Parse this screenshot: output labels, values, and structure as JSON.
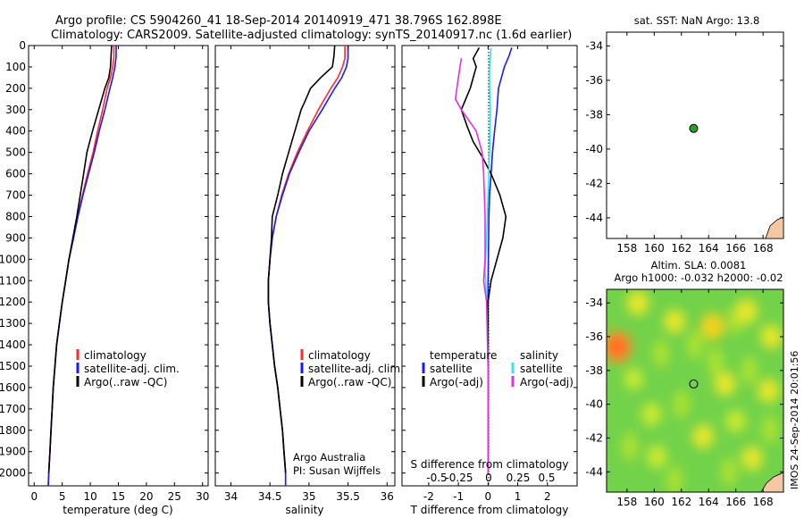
{
  "header": {
    "line1": "Argo profile: CS 5904260_41 18-Sep-2014 20140919_471 38.796S 162.898E",
    "line2": "Climatology: CARS2009. Satellite-adjusted climatology: synTS_20140917.nc (1.6d earlier)"
  },
  "colors": {
    "climatology": "#ff2a2a",
    "satellite": "#1a1aff",
    "argo": "#000000",
    "satellite_salinity": "#33e6e6",
    "argo_salinity": "#e52ee5",
    "land": "#f5c7a3",
    "marker": "#2ca02c"
  },
  "depth_ticks": [
    "0",
    "100",
    "200",
    "300",
    "400",
    "500",
    "600",
    "700",
    "800",
    "900",
    "1000",
    "1100",
    "1200",
    "1300",
    "1400",
    "1500",
    "1600",
    "1700",
    "1800",
    "1900",
    "2000"
  ],
  "chart_data": [
    {
      "type": "line",
      "panel": "temperature",
      "xlabel": "temperature (deg C)",
      "xlim": [
        -1,
        31
      ],
      "ylim": [
        2060,
        0
      ],
      "xticks": [
        "0",
        "5",
        "10",
        "15",
        "20",
        "25",
        "30"
      ],
      "legend": [
        "climatology",
        "satellite-adj. clim.",
        "Argo(..raw -QC)"
      ],
      "series": [
        {
          "name": "climatology",
          "color": "#ff2a2a",
          "points": [
            [
              14.2,
              0
            ],
            [
              14.2,
              50
            ],
            [
              14.0,
              100
            ],
            [
              13.6,
              150
            ],
            [
              13.0,
              200
            ],
            [
              12.2,
              300
            ],
            [
              11.3,
              400
            ],
            [
              10.5,
              500
            ],
            [
              9.5,
              600
            ],
            [
              8.6,
              700
            ],
            [
              7.7,
              800
            ],
            [
              7.0,
              900
            ],
            [
              6.2,
              1000
            ],
            [
              5.6,
              1100
            ],
            [
              5.0,
              1200
            ],
            [
              4.5,
              1300
            ],
            [
              4.0,
              1400
            ],
            [
              3.7,
              1500
            ],
            [
              3.4,
              1600
            ],
            [
              3.2,
              1700
            ],
            [
              3.0,
              1800
            ],
            [
              2.8,
              1900
            ],
            [
              2.6,
              2000
            ],
            [
              2.5,
              2060
            ]
          ]
        },
        {
          "name": "satellite-adj. clim.",
          "color": "#1a1aff",
          "points": [
            [
              14.6,
              0
            ],
            [
              14.6,
              50
            ],
            [
              14.4,
              100
            ],
            [
              14.0,
              150
            ],
            [
              13.5,
              200
            ],
            [
              12.6,
              300
            ],
            [
              11.6,
              400
            ],
            [
              10.7,
              500
            ],
            [
              9.7,
              600
            ],
            [
              8.7,
              700
            ],
            [
              7.8,
              800
            ],
            [
              7.0,
              900
            ],
            [
              6.2,
              1000
            ],
            [
              5.6,
              1100
            ],
            [
              5.0,
              1200
            ],
            [
              4.5,
              1300
            ],
            [
              4.0,
              1400
            ],
            [
              3.7,
              1500
            ],
            [
              3.4,
              1600
            ],
            [
              3.2,
              1700
            ],
            [
              3.0,
              1800
            ],
            [
              2.8,
              1900
            ],
            [
              2.6,
              2000
            ],
            [
              2.5,
              2060
            ]
          ]
        },
        {
          "name": "Argo(..raw -QC)",
          "color": "#000000",
          "points": [
            [
              13.8,
              0
            ],
            [
              13.7,
              50
            ],
            [
              13.6,
              100
            ],
            [
              13.3,
              150
            ],
            [
              12.6,
              200
            ],
            [
              11.5,
              300
            ],
            [
              10.4,
              400
            ],
            [
              9.8,
              460
            ],
            [
              9.4,
              500
            ],
            [
              8.8,
              600
            ],
            [
              8.2,
              700
            ],
            [
              7.6,
              800
            ],
            [
              6.9,
              900
            ],
            [
              6.2,
              1000
            ],
            [
              5.6,
              1100
            ],
            [
              5.0,
              1200
            ],
            [
              4.5,
              1300
            ],
            [
              4.0,
              1400
            ],
            [
              3.7,
              1500
            ],
            [
              3.4,
              1600
            ],
            [
              3.2,
              1700
            ],
            [
              3.0,
              1800
            ],
            [
              2.8,
              1900
            ],
            [
              2.6,
              2000
            ]
          ]
        }
      ]
    },
    {
      "type": "line",
      "panel": "salinity",
      "xlabel": "salinity",
      "xlim": [
        33.8,
        36.1
      ],
      "ylim": [
        2060,
        0
      ],
      "xticks": [
        "34",
        "34.5",
        "35",
        "35.5",
        "36"
      ],
      "legend": [
        "climatology",
        "satellite-adj. clim.",
        "Argo(..raw -QC)"
      ],
      "note": [
        "Argo Australia",
        "PI: Susan Wijffels"
      ],
      "series": [
        {
          "name": "climatology",
          "color": "#ff2a2a",
          "points": [
            [
              35.46,
              0
            ],
            [
              35.46,
              60
            ],
            [
              35.43,
              100
            ],
            [
              35.37,
              150
            ],
            [
              35.28,
              200
            ],
            [
              35.12,
              300
            ],
            [
              34.98,
              400
            ],
            [
              34.85,
              500
            ],
            [
              34.74,
              600
            ],
            [
              34.65,
              700
            ],
            [
              34.58,
              800
            ],
            [
              34.53,
              900
            ],
            [
              34.5,
              1000
            ],
            [
              34.48,
              1100
            ],
            [
              34.48,
              1200
            ],
            [
              34.5,
              1300
            ],
            [
              34.53,
              1400
            ],
            [
              34.56,
              1500
            ],
            [
              34.6,
              1600
            ],
            [
              34.63,
              1700
            ],
            [
              34.66,
              1800
            ],
            [
              34.68,
              1900
            ],
            [
              34.7,
              2000
            ],
            [
              34.7,
              2060
            ]
          ]
        },
        {
          "name": "satellite-adj. clim.",
          "color": "#1a1aff",
          "points": [
            [
              35.5,
              0
            ],
            [
              35.5,
              60
            ],
            [
              35.48,
              100
            ],
            [
              35.42,
              150
            ],
            [
              35.33,
              200
            ],
            [
              35.17,
              300
            ],
            [
              35.0,
              400
            ],
            [
              34.87,
              500
            ],
            [
              34.75,
              600
            ],
            [
              34.66,
              700
            ],
            [
              34.58,
              800
            ],
            [
              34.53,
              900
            ],
            [
              34.5,
              1000
            ],
            [
              34.48,
              1100
            ],
            [
              34.48,
              1200
            ],
            [
              34.5,
              1300
            ],
            [
              34.53,
              1400
            ],
            [
              34.56,
              1500
            ],
            [
              34.6,
              1600
            ],
            [
              34.63,
              1700
            ],
            [
              34.66,
              1800
            ],
            [
              34.68,
              1900
            ],
            [
              34.7,
              2000
            ],
            [
              34.7,
              2060
            ]
          ]
        },
        {
          "name": "Argo(..raw -QC)",
          "color": "#000000",
          "points": [
            [
              35.33,
              0
            ],
            [
              35.32,
              50
            ],
            [
              35.3,
              100
            ],
            [
              35.15,
              150
            ],
            [
              35.02,
              200
            ],
            [
              34.95,
              260
            ],
            [
              34.9,
              300
            ],
            [
              34.82,
              400
            ],
            [
              34.74,
              500
            ],
            [
              34.66,
              600
            ],
            [
              34.6,
              700
            ],
            [
              34.53,
              800
            ],
            [
              34.52,
              900
            ],
            [
              34.5,
              1000
            ],
            [
              34.48,
              1100
            ],
            [
              34.48,
              1200
            ],
            [
              34.5,
              1300
            ],
            [
              34.53,
              1400
            ],
            [
              34.56,
              1500
            ],
            [
              34.6,
              1600
            ],
            [
              34.63,
              1700
            ],
            [
              34.66,
              1800
            ],
            [
              34.68,
              1900
            ],
            [
              34.7,
              2000
            ]
          ]
        }
      ]
    },
    {
      "type": "line",
      "panel": "difference",
      "xlabel": "T difference from climatology",
      "xlabel_top": "S difference from climatology",
      "xlim": [
        -2.9,
        3.0
      ],
      "ylim": [
        2060,
        0
      ],
      "xticks": [
        "-2",
        "-1",
        "0",
        "1",
        "2"
      ],
      "top_ticks": [
        "-0.5",
        "-0.25",
        "0",
        "0.25",
        "0.5"
      ],
      "legend_temperature": [
        "temperature",
        "satellite",
        "Argo(-adj)"
      ],
      "legend_salinity": [
        "salinity",
        "satellite",
        "Argo(-adj)"
      ],
      "series": [
        {
          "name": "temperature satellite",
          "color": "#1a1aff",
          "points": [
            [
              0.8,
              10
            ],
            [
              0.7,
              50
            ],
            [
              0.55,
              100
            ],
            [
              0.45,
              150
            ],
            [
              0.35,
              200
            ],
            [
              0.3,
              300
            ],
            [
              0.22,
              400
            ],
            [
              0.15,
              500
            ],
            [
              0.1,
              600
            ],
            [
              0.05,
              700
            ],
            [
              0.03,
              800
            ],
            [
              0.02,
              900
            ],
            [
              0.01,
              1000
            ],
            [
              0.0,
              1100
            ],
            [
              0.0,
              1500
            ],
            [
              0.0,
              2000
            ]
          ]
        },
        {
          "name": "temperature Argo(-adj)",
          "color": "#000000",
          "points": [
            [
              -0.3,
              10
            ],
            [
              -0.5,
              60
            ],
            [
              -0.4,
              100
            ],
            [
              -0.6,
              200
            ],
            [
              -0.9,
              300
            ],
            [
              -0.7,
              380
            ],
            [
              -0.5,
              450
            ],
            [
              -0.2,
              520
            ],
            [
              0.1,
              600
            ],
            [
              0.4,
              700
            ],
            [
              0.6,
              800
            ],
            [
              0.5,
              900
            ],
            [
              0.3,
              1000
            ],
            [
              0.1,
              1100
            ],
            [
              0.0,
              1200
            ],
            [
              0.0,
              1600
            ],
            [
              0.0,
              2000
            ]
          ]
        },
        {
          "name": "salinity satellite",
          "color": "#33e6e6",
          "points": [
            [
              0.1,
              10
            ],
            [
              0.05,
              100
            ],
            [
              0.05,
              200
            ],
            [
              0.08,
              300
            ],
            [
              0.05,
              500
            ],
            [
              0.0,
              700
            ],
            [
              -0.05,
              900
            ],
            [
              -0.1,
              1050
            ],
            [
              -0.05,
              1200
            ],
            [
              0.0,
              1500
            ],
            [
              0.0,
              2000
            ]
          ]
        },
        {
          "name": "salinity Argo(-adj)",
          "color": "#e52ee5",
          "points": [
            [
              -0.9,
              60
            ],
            [
              -1.0,
              150
            ],
            [
              -1.1,
              250
            ],
            [
              -0.9,
              300
            ],
            [
              -0.4,
              400
            ],
            [
              -0.2,
              500
            ],
            [
              -0.15,
              600
            ],
            [
              -0.1,
              800
            ],
            [
              -0.1,
              1000
            ],
            [
              -0.15,
              1100
            ],
            [
              -0.05,
              1200
            ],
            [
              0.0,
              1500
            ],
            [
              0.0,
              2000
            ]
          ]
        }
      ]
    },
    {
      "type": "scatter",
      "panel": "sst_map",
      "title": "sat. SST: NaN Argo: 13.8",
      "xlim": [
        156.5,
        169.5
      ],
      "ylim": [
        -45.2,
        -33.2
      ],
      "xticks": [
        "158",
        "160",
        "162",
        "164",
        "166",
        "168"
      ],
      "yticks": [
        "-34",
        "-36",
        "-38",
        "-40",
        "-42",
        "-44"
      ],
      "x": [
        162.9
      ],
      "y": [
        -38.8
      ]
    },
    {
      "type": "heatmap",
      "panel": "sla_map",
      "title_line1": "Altim. SLA: 0.0081",
      "title_line2": "Argo h1000: -0.032 h2000: -0.02",
      "xlim": [
        156.5,
        169.5
      ],
      "ylim": [
        -45.2,
        -33.2
      ],
      "xticks": [
        "158",
        "160",
        "162",
        "164",
        "166",
        "168"
      ],
      "yticks": [
        "-34",
        "-36",
        "-38",
        "-40",
        "-42",
        "-44"
      ],
      "x": [
        162.9
      ],
      "y": [
        -38.8
      ],
      "blobs": [
        [
          157.3,
          -36.6,
          1.0
        ],
        [
          164.3,
          -35.4,
          0.7
        ],
        [
          158.8,
          -34.0,
          0.55
        ],
        [
          161.5,
          -35.1,
          0.5
        ],
        [
          166.8,
          -34.5,
          0.55
        ],
        [
          168.6,
          -36.0,
          0.5
        ],
        [
          165.2,
          -38.8,
          0.5
        ],
        [
          168.4,
          -39.2,
          0.5
        ],
        [
          159.8,
          -40.6,
          0.45
        ],
        [
          163.6,
          -41.9,
          0.5
        ],
        [
          160.2,
          -43.1,
          0.45
        ],
        [
          167.2,
          -43.2,
          0.5
        ],
        [
          158.5,
          -38.5,
          0.35
        ],
        [
          166.0,
          -41.0,
          0.4
        ]
      ]
    }
  ],
  "footer": {
    "stamp": "IMOS 24-Sep-2014 20:01:56"
  }
}
